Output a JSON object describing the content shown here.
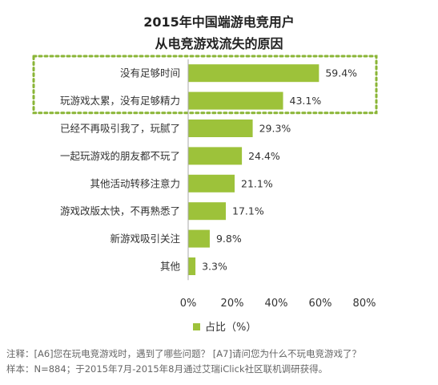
{
  "title_lines": [
    "2015年中国端游电竞用户",
    "从电竞游戏流失的原因"
  ],
  "chart_data": {
    "type": "bar",
    "orientation": "horizontal",
    "title": "2015年中国端游电竞用户从电竞游戏流失的原因",
    "categories": [
      "没有足够时间",
      "玩游戏太累，没有足够精力",
      "已经不再吸引我了，玩腻了",
      "一起玩游戏的朋友都不玩了",
      "其他活动转移注意力",
      "游戏改版太快，不再熟悉了",
      "新游戏吸引关注",
      "其他"
    ],
    "series": [
      {
        "name": "占比（%）",
        "values": [
          59.4,
          43.1,
          29.3,
          24.4,
          21.1,
          17.1,
          9.8,
          3.3
        ],
        "value_labels": [
          "59.4%",
          "43.1%",
          "29.3%",
          "24.4%",
          "21.1%",
          "17.1%",
          "9.8%",
          "3.3%"
        ]
      }
    ],
    "xlim": [
      0,
      80
    ],
    "x_ticks": [
      0,
      20,
      40,
      60,
      80
    ],
    "x_tick_labels": [
      "0%",
      "20%",
      "40%",
      "60%",
      "80%"
    ],
    "xlabel": "",
    "ylabel": "",
    "grid": false,
    "legend": "bottom",
    "highlighted_categories": [
      0,
      1
    ],
    "highlight_style": "dotted-box",
    "colors": {
      "bar": "#9dc23a",
      "highlight_box": "#8ab536",
      "axis": "#aaaaaa"
    }
  },
  "notes": [
    "注释：[A6]您在玩电竞游戏时，遇到了哪些问题？ [A7]请问您为什么不玩电竞游戏了？",
    "样本：N=884；于2015年7月-2015年8月通过艾瑞iClick社区联机调研获得。"
  ]
}
